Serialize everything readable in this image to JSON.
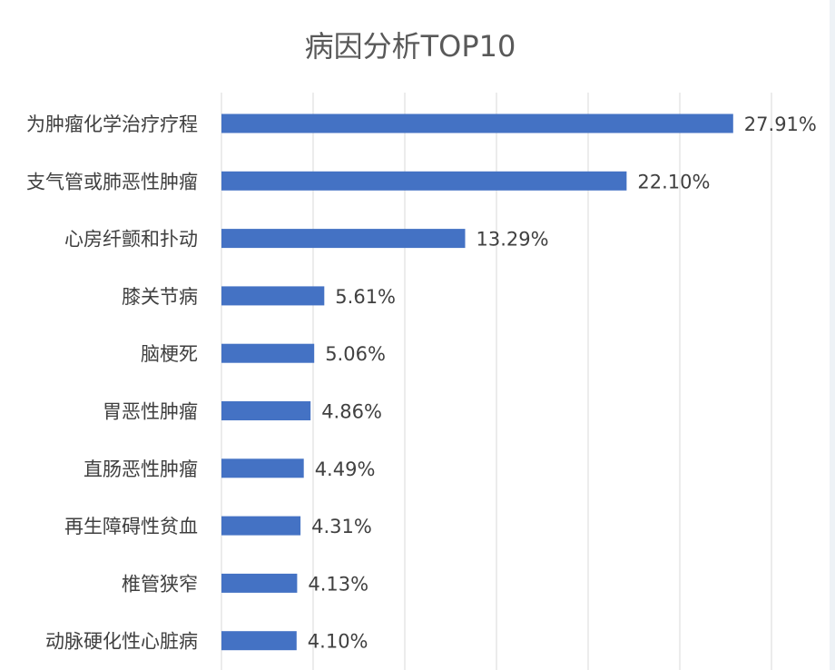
{
  "chart_data": {
    "type": "bar",
    "orientation": "horizontal",
    "title": "病因分析TOP10",
    "xlabel": "",
    "ylabel": "",
    "categories": [
      "为肿瘤化学治疗疗程",
      "支气管或肺恶性肿瘤",
      "心房纤颤和扑动",
      "膝关节病",
      "脑梗死",
      "胃恶性肿瘤",
      "直肠恶性肿瘤",
      "再生障碍性贫血",
      "椎管狭窄",
      "动脉硬化性心脏病"
    ],
    "values": [
      27.91,
      22.1,
      13.29,
      5.61,
      5.06,
      4.86,
      4.49,
      4.31,
      4.13,
      4.1
    ],
    "value_labels": [
      "27.91%",
      "22.10%",
      "13.29%",
      "5.61%",
      "5.06%",
      "4.86%",
      "4.49%",
      "4.31%",
      "4.13%",
      "4.10%"
    ],
    "xlim": [
      0,
      30
    ],
    "grid": true,
    "legend": "none",
    "bar_color": "#4472c4",
    "grid_color": "#d9d9d9",
    "text_color": "#404040",
    "title_color": "#595959"
  }
}
